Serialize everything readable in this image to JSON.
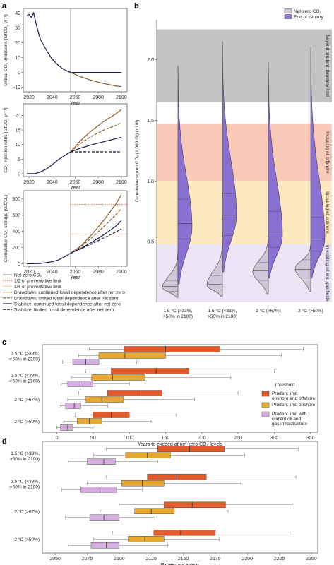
{
  "panel_letters": {
    "a": "a",
    "b": "b",
    "c": "c",
    "d": "d"
  },
  "chart_data": [
    {
      "id": "a1",
      "type": "line",
      "ylabel": "Global CO₂ emissions (GtCO₂ yr⁻¹)",
      "xlabel": "Year",
      "xlim": [
        2015,
        2105
      ],
      "ylim": [
        -13,
        43
      ],
      "xticks": [
        2020,
        2040,
        2060,
        2080,
        2100
      ],
      "yticks": [
        -10,
        0,
        10,
        20,
        30,
        40
      ],
      "vline": 2056,
      "series": [
        {
          "name": "Stabilize: limited fossil dependence after net zero",
          "color": "#1a1550",
          "x": [
            2018,
            2020,
            2022,
            2024,
            2026,
            2028,
            2030,
            2035,
            2040,
            2045,
            2050,
            2056,
            2070,
            2085,
            2100
          ],
          "y": [
            38,
            39,
            37,
            40,
            33,
            27,
            22,
            15,
            9,
            5,
            2,
            0,
            0,
            0,
            0
          ]
        },
        {
          "name": "Drawdown: continued fossil dependence after net zero",
          "color": "#8a5a2b",
          "x": [
            2056,
            2065,
            2075,
            2085,
            2095,
            2100
          ],
          "y": [
            0,
            -3,
            -5.5,
            -7.5,
            -9,
            -9.5
          ]
        }
      ]
    },
    {
      "id": "a2",
      "type": "line",
      "ylabel": "CO₂ injection rates (GtCO₂ yr⁻¹)",
      "xlabel": "Year",
      "xlim": [
        2015,
        2105
      ],
      "ylim": [
        -1,
        24
      ],
      "xticks": [
        2020,
        2040,
        2060,
        2080,
        2100
      ],
      "yticks": [
        0,
        5,
        10,
        15,
        20
      ],
      "vline": 2056,
      "series": [
        {
          "name": "Net-zero CO₂",
          "color": "#1a1550",
          "dash": "",
          "x": [
            2018,
            2025,
            2030,
            2035,
            2040,
            2045,
            2050,
            2056
          ],
          "y": [
            0,
            0,
            0.6,
            1.6,
            3.0,
            4.7,
            6.0,
            7.5
          ]
        },
        {
          "name": "Drawdown: continued fossil dependence after net zero",
          "color": "#8a5a2b",
          "dash": "",
          "x": [
            2056,
            2065,
            2075,
            2085,
            2095,
            2100
          ],
          "y": [
            7.5,
            11.5,
            15,
            18,
            20.5,
            22
          ]
        },
        {
          "name": "Drawdown: limited fossil dependence after net zero",
          "color": "#8a5a2b",
          "dash": "4,2",
          "x": [
            2056,
            2065,
            2075,
            2085,
            2095,
            2100
          ],
          "y": [
            7.5,
            10.5,
            13,
            15,
            16.5,
            17.5
          ]
        },
        {
          "name": "Stabilize: continued fossil dependence after net zero",
          "color": "#1a1550",
          "dash": "",
          "x": [
            2056,
            2065,
            2075,
            2085,
            2095,
            2100
          ],
          "y": [
            7.5,
            8.8,
            10,
            11,
            12,
            12.5
          ]
        },
        {
          "name": "Stabilize: limited fossil dependence after net zero",
          "color": "#1a1550",
          "dash": "4,2",
          "x": [
            2056,
            2070,
            2085,
            2100
          ],
          "y": [
            7.5,
            7.5,
            7.5,
            7.5
          ]
        }
      ]
    },
    {
      "id": "a3",
      "type": "line",
      "ylabel": "Cumulative CO₂ storage (GtCO₂)",
      "xlabel": "Year",
      "xlim": [
        2015,
        2105
      ],
      "ylim": [
        -30,
        900
      ],
      "xticks": [
        2020,
        2040,
        2060,
        2080,
        2100
      ],
      "yticks": [
        0,
        200,
        400,
        600,
        800
      ],
      "vline": 2056,
      "hlines": [
        {
          "name": "1/2 of preventative limit",
          "y": 730,
          "color": "#e06040",
          "dash": "1.5,1.5"
        },
        {
          "name": "1/4 of preventative limit",
          "y": 365,
          "color": "#e8b060",
          "dash": "1.5,1.5"
        }
      ],
      "series": [
        {
          "name": "Net-zero CO₂",
          "color": "#1a1550",
          "dash": "",
          "x": [
            2018,
            2030,
            2040,
            2045,
            2050,
            2056
          ],
          "y": [
            0,
            5,
            25,
            45,
            80,
            130
          ]
        },
        {
          "name": "Drawdown: continued fossil dependence after net zero",
          "color": "#8a5a2b",
          "dash": "",
          "x": [
            2056,
            2065,
            2075,
            2085,
            2095,
            2100
          ],
          "y": [
            130,
            220,
            370,
            540,
            730,
            850
          ]
        },
        {
          "name": "Drawdown: limited fossil dependence after net zero",
          "color": "#8a5a2b",
          "dash": "4,2",
          "x": [
            2056,
            2065,
            2075,
            2085,
            2095,
            2100
          ],
          "y": [
            130,
            210,
            330,
            460,
            600,
            680
          ]
        },
        {
          "name": "Stabilize: continued fossil dependence after net zero",
          "color": "#1a1550",
          "dash": "",
          "x": [
            2056,
            2065,
            2075,
            2085,
            2095,
            2100
          ],
          "y": [
            130,
            190,
            270,
            360,
            460,
            530
          ]
        },
        {
          "name": "Stabilize: limited fossil dependence after net zero",
          "color": "#1a1550",
          "dash": "4,2",
          "x": [
            2056,
            2065,
            2075,
            2085,
            2095,
            2100
          ],
          "y": [
            130,
            185,
            250,
            320,
            390,
            430
          ]
        }
      ]
    },
    {
      "id": "b",
      "type": "violin",
      "ylabel": "Cumulative stored CO₂ (1,000 Gt) (×10³)",
      "ylim": [
        0,
        2.3
      ],
      "yticks": [
        0.5,
        1.0,
        1.5,
        2.0
      ],
      "bands": [
        {
          "label": "Beyond prudent planetary limit",
          "from": 1.65,
          "to": 2.25,
          "color": "#c4c4c4"
        },
        {
          "label": "Including all offshore",
          "from": 1.0,
          "to": 1.47,
          "color": "#f9cab8"
        },
        {
          "label": "Including all onshore",
          "from": 0.48,
          "to": 1.0,
          "color": "#fde9c0"
        },
        {
          "label": "In existing oil and gas fields",
          "from": 0.0,
          "to": 0.48,
          "color": "#ece4f4"
        }
      ],
      "legend": [
        {
          "label": "Net-zero CO₂",
          "color": "#cfc6d8"
        },
        {
          "label": "End of century",
          "color": "#8a70d0"
        }
      ],
      "categories": [
        "1.5 °C (>33%, >50% in 2100)",
        "1.5 °C (<33%, >50% in 2100)",
        "2 °C (>67%)",
        "2 °C (>50%)"
      ],
      "netzero": [
        {
          "min": 0.04,
          "max": 0.42,
          "peak": 0.12,
          "quartiles": [
            0.09,
            0.13,
            0.18
          ]
        },
        {
          "min": 0.05,
          "max": 0.5,
          "peak": 0.14,
          "quartiles": [
            0.1,
            0.15,
            0.22
          ]
        },
        {
          "min": 0.07,
          "max": 0.55,
          "peak": 0.25,
          "quartiles": [
            0.18,
            0.26,
            0.33
          ]
        },
        {
          "min": 0.09,
          "max": 0.48,
          "peak": 0.28,
          "quartiles": [
            0.2,
            0.27,
            0.35
          ]
        }
      ],
      "endofcentury": [
        {
          "min": 0.15,
          "max": 1.95,
          "peak": 0.62,
          "quartiles": [
            0.52,
            0.65,
            0.85
          ]
        },
        {
          "min": 0.25,
          "max": 2.15,
          "peak": 0.72,
          "quartiles": [
            0.55,
            0.72,
            0.9
          ]
        },
        {
          "min": 0.2,
          "max": 1.98,
          "peak": 0.55,
          "quartiles": [
            0.45,
            0.58,
            0.75
          ]
        },
        {
          "min": 0.2,
          "max": 2.1,
          "peak": 0.52,
          "quartiles": [
            0.42,
            0.52,
            0.7
          ]
        }
      ]
    },
    {
      "id": "c",
      "type": "boxplot",
      "xlabel": "Years to exceed at net-zero CO₂ levels",
      "xlim": [
        -20,
        360
      ],
      "xticks": [
        0,
        50,
        100,
        150,
        200,
        250,
        300,
        350
      ],
      "legend_title": "Threshold",
      "legend": [
        {
          "label": "Prudent limit onshore and offshore",
          "color": "#e45a2a"
        },
        {
          "label": "Prudent limit onshore",
          "color": "#e9a830"
        },
        {
          "label": "Prudent limit with current oil and gas infrastructure",
          "color": "#d6aee0"
        }
      ],
      "categories": [
        "1.5 °C (>33%, >50% in 2100)",
        "1.5 °C (<33%, >50% in 2100)",
        "2 °C (>67%)",
        "2 °C (>50%)"
      ],
      "groups": [
        [
          {
            "min": 45,
            "q1": 93,
            "med": 150,
            "q3": 225,
            "max": 340
          },
          {
            "min": 30,
            "q1": 58,
            "med": 94,
            "q3": 150,
            "max": 310
          },
          {
            "min": 8,
            "q1": 22,
            "med": 40,
            "q3": 58,
            "max": 110
          }
        ],
        [
          {
            "min": 40,
            "q1": 75,
            "med": 137,
            "q3": 182,
            "max": 300
          },
          {
            "min": 20,
            "q1": 48,
            "med": 77,
            "q3": 122,
            "max": 240
          },
          {
            "min": 6,
            "q1": 15,
            "med": 32,
            "q3": 50,
            "max": 100
          }
        ],
        [
          {
            "min": 30,
            "q1": 70,
            "med": 112,
            "q3": 145,
            "max": 250
          },
          {
            "min": 15,
            "q1": 40,
            "med": 62,
            "q3": 92,
            "max": 190
          },
          {
            "min": 3,
            "q1": 12,
            "med": 24,
            "q3": 33,
            "max": 70
          }
        ],
        [
          {
            "min": 25,
            "q1": 50,
            "med": 75,
            "q3": 100,
            "max": 165
          },
          {
            "min": 10,
            "q1": 28,
            "med": 45,
            "q3": 62,
            "max": 130
          },
          {
            "min": 0,
            "q1": 5,
            "med": 15,
            "q3": 22,
            "max": 50
          }
        ]
      ]
    },
    {
      "id": "d",
      "type": "boxplot",
      "xlabel": "Exceedance year",
      "xlim": [
        2040,
        2255
      ],
      "xticks": [
        2050,
        2075,
        2100,
        2125,
        2150,
        2175,
        2200,
        2225,
        2250
      ],
      "categories": [
        "1.5 °C (>33%, >50% in 2100)",
        "1.5 °C (<33%, >50% in 2100)",
        "2 °C (>67%)",
        "2 °C (>50%)"
      ],
      "groups": [
        [
          {
            "min": 2090,
            "q1": 2130,
            "med": 2155,
            "q3": 2182,
            "max": 2240
          },
          {
            "min": 2080,
            "q1": 2105,
            "med": 2122,
            "q3": 2140,
            "max": 2198
          },
          {
            "min": 2060,
            "q1": 2075,
            "med": 2088,
            "q3": 2097,
            "max": 2130
          }
        ],
        [
          {
            "min": 2090,
            "q1": 2122,
            "med": 2145,
            "q3": 2168,
            "max": 2238
          },
          {
            "min": 2075,
            "q1": 2102,
            "med": 2118,
            "q3": 2135,
            "max": 2195
          },
          {
            "min": 2055,
            "q1": 2070,
            "med": 2085,
            "q3": 2098,
            "max": 2118
          }
        ],
        [
          {
            "min": 2100,
            "q1": 2135,
            "med": 2157,
            "q3": 2183,
            "max": 2235
          },
          {
            "min": 2085,
            "q1": 2112,
            "med": 2125,
            "q3": 2143,
            "max": 2185
          },
          {
            "min": 2058,
            "q1": 2077,
            "med": 2088,
            "q3": 2100,
            "max": 2128
          }
        ],
        [
          {
            "min": 2095,
            "q1": 2127,
            "med": 2148,
            "q3": 2175,
            "max": 2235
          },
          {
            "min": 2080,
            "q1": 2107,
            "med": 2120,
            "q3": 2135,
            "max": 2178
          },
          {
            "min": 2060,
            "q1": 2078,
            "med": 2090,
            "q3": 2100,
            "max": 2138
          }
        ]
      ]
    }
  ],
  "legend_a": [
    {
      "label": "Net-zero CO₂",
      "color": "#999999",
      "dash": ""
    },
    {
      "label": "1/2 of preventative limit",
      "color": "#e06040",
      "dash": "1.5,1.5"
    },
    {
      "label": "1/4 of preventative limit",
      "color": "#e8b060",
      "dash": "1.5,1.5"
    },
    {
      "label": "Drawdown: continued fossil dependence after net zero",
      "color": "#8a5a2b",
      "dash": ""
    },
    {
      "label": "Drawdown: limited fossil dependence after net zero",
      "color": "#8a5a2b",
      "dash": "4,2"
    },
    {
      "label": "Stabilize: continued fossil dependence after net zero",
      "color": "#1a1550",
      "dash": ""
    },
    {
      "label": "Stabilize: limited fossil dependence after net zero",
      "color": "#1a1550",
      "dash": "4,2"
    }
  ]
}
